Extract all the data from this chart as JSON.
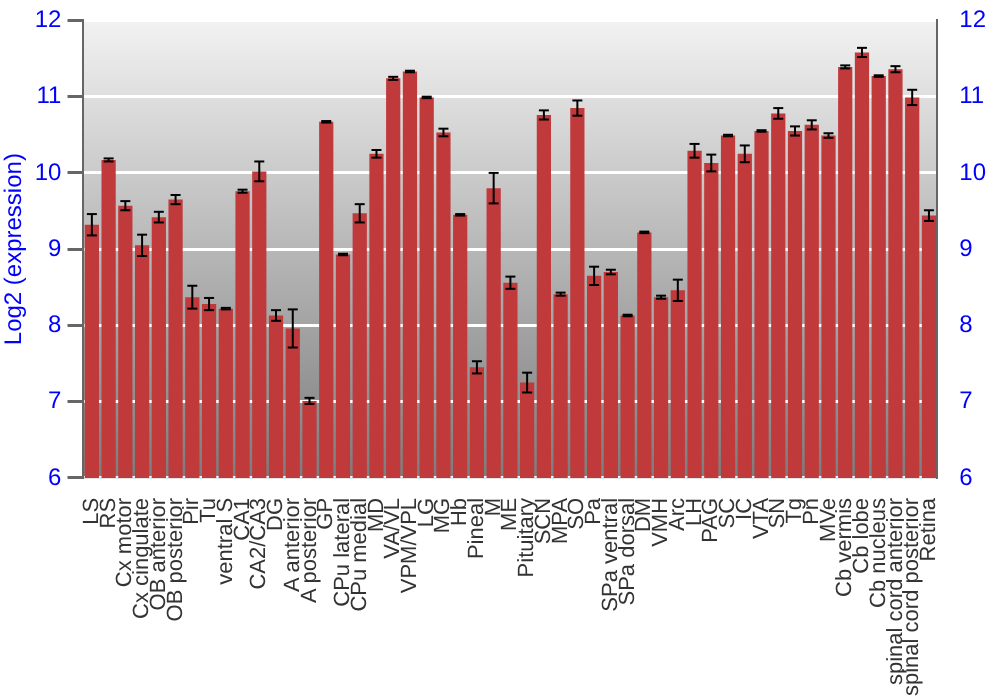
{
  "chart_data": {
    "type": "bar",
    "ylabel": "Log2 (expression)",
    "categories": [
      "LS",
      "RS",
      "Cx motor",
      "Cx cingulate",
      "OB anterior",
      "OB posterior",
      "Pir",
      "Tu",
      "ventral S",
      "CA1",
      "CA2/CA3",
      "DG",
      "A anterior",
      "A posterior",
      "GP",
      "CPu lateral",
      "CPu medial",
      "MD",
      "VA/VL",
      "VPM/VPL",
      "LG",
      "MG",
      "Hb",
      "Pineal",
      "M",
      "ME",
      "Pituitary",
      "SCN",
      "MPA",
      "SO",
      "Pa",
      "SPa ventral",
      "SPa dorsal",
      "DM",
      "VMH",
      "Arc",
      "LH",
      "PAG",
      "SC",
      "IC",
      "VTA",
      "SN",
      "Tg",
      "Pn",
      "MVe",
      "Cb vermis",
      "Cb lobe",
      "Cb nucleus",
      "spinal cord anterior",
      "spinal cord posterior",
      "Retina"
    ],
    "values": [
      9.32,
      10.17,
      9.57,
      9.05,
      9.42,
      9.65,
      8.37,
      8.28,
      8.22,
      9.76,
      10.02,
      8.13,
      7.96,
      7.01,
      10.67,
      8.93,
      9.47,
      10.25,
      11.24,
      11.33,
      10.99,
      10.53,
      9.45,
      7.45,
      9.8,
      8.56,
      7.25,
      10.76,
      8.41,
      10.85,
      8.65,
      8.7,
      8.13,
      9.22,
      8.37,
      8.46,
      10.29,
      10.13,
      10.49,
      10.25,
      10.55,
      10.78,
      10.55,
      10.63,
      10.49,
      11.39,
      11.58,
      11.27,
      11.36,
      10.99,
      9.44
    ],
    "errors": [
      0.14,
      0.02,
      0.06,
      0.14,
      0.07,
      0.06,
      0.15,
      0.08,
      0.01,
      0.02,
      0.13,
      0.07,
      0.25,
      0.04,
      0.01,
      0.01,
      0.12,
      0.05,
      0.02,
      0.01,
      0.01,
      0.05,
      0.01,
      0.08,
      0.2,
      0.08,
      0.13,
      0.06,
      0.02,
      0.1,
      0.12,
      0.03,
      0.01,
      0.01,
      0.02,
      0.14,
      0.09,
      0.11,
      0.01,
      0.11,
      0.01,
      0.07,
      0.06,
      0.06,
      0.03,
      0.02,
      0.06,
      0.01,
      0.04,
      0.1,
      0.07
    ],
    "color": "#c0393b",
    "ylim": [
      6,
      12
    ],
    "yticks": [
      6,
      7,
      8,
      9,
      10,
      11,
      12
    ],
    "y2lim": [
      6,
      12
    ],
    "y2ticks": [
      6,
      7,
      8,
      9,
      10,
      11,
      12
    ],
    "grid": "y",
    "legend": false
  }
}
